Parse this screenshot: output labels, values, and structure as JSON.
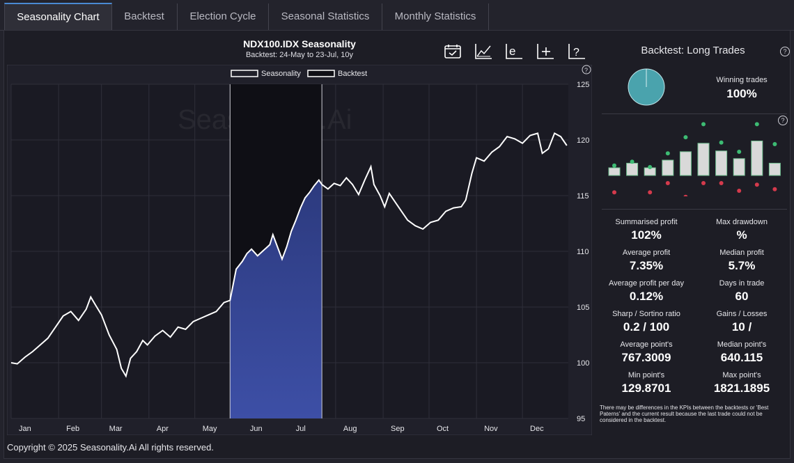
{
  "tabs": [
    {
      "label": "Seasonality Chart",
      "active": true
    },
    {
      "label": "Backtest",
      "active": false
    },
    {
      "label": "Election Cycle",
      "active": false
    },
    {
      "label": "Seasonal Statistics",
      "active": false
    },
    {
      "label": "Monthly Statistics",
      "active": false
    }
  ],
  "chart_header": {
    "title": "NDX100.IDX Seasonality",
    "subtitle": "Backtest: 24-May to 23-Jul, 10y"
  },
  "toolbar": {
    "icons": [
      "calendar-check-icon",
      "trend-chart-icon",
      "e-axis-icon",
      "plus-axis-icon",
      "question-axis-icon"
    ]
  },
  "help_glyph": "?",
  "colors": {
    "background": "#1d1d25",
    "plot_background": "#1a1a23",
    "line": "#ffffff",
    "backtest_fill": "#3d4fa6",
    "backtest_shade": "#0f0f15",
    "pie": "#4aa3ad",
    "profit_dot": "#3dbb73",
    "loss_dot": "#d43a4c",
    "bar": "#d9d9d9"
  },
  "chart_data": {
    "type": "line",
    "title": "NDX100.IDX Seasonality",
    "subtitle": "Backtest: 24-May to 23-Jul, 10y",
    "legend": [
      "Seasonality",
      "Backtest"
    ],
    "legend_position": "top-center",
    "watermark": "Seasonality.Ai",
    "x_tick_labels": [
      "Jan",
      "Feb",
      "Mar",
      "Apr",
      "May",
      "Jun",
      "Jul",
      "Aug",
      "Sep",
      "Oct",
      "Nov",
      "Dec"
    ],
    "y_ticks": [
      95,
      100,
      105,
      110,
      115,
      120,
      125
    ],
    "ylim": [
      95,
      125
    ],
    "xlim": [
      1,
      365
    ],
    "grid": true,
    "backtest_range_day": [
      144,
      204
    ],
    "series": [
      {
        "name": "Seasonality",
        "points": [
          [
            1,
            100.0
          ],
          [
            5,
            99.9
          ],
          [
            10,
            100.5
          ],
          [
            15,
            101.0
          ],
          [
            20,
            101.6
          ],
          [
            25,
            102.2
          ],
          [
            30,
            103.2
          ],
          [
            35,
            104.2
          ],
          [
            40,
            104.6
          ],
          [
            45,
            103.8
          ],
          [
            50,
            104.8
          ],
          [
            53,
            105.9
          ],
          [
            56,
            105.2
          ],
          [
            60,
            104.3
          ],
          [
            65,
            102.5
          ],
          [
            70,
            101.2
          ],
          [
            73,
            99.5
          ],
          [
            76,
            98.8
          ],
          [
            79,
            100.4
          ],
          [
            83,
            101.0
          ],
          [
            87,
            102.0
          ],
          [
            90,
            101.6
          ],
          [
            95,
            102.4
          ],
          [
            100,
            102.9
          ],
          [
            105,
            102.3
          ],
          [
            110,
            103.2
          ],
          [
            115,
            103.0
          ],
          [
            120,
            103.7
          ],
          [
            125,
            104.0
          ],
          [
            130,
            104.3
          ],
          [
            135,
            104.6
          ],
          [
            140,
            105.4
          ],
          [
            144,
            105.6
          ],
          [
            148,
            108.4
          ],
          [
            152,
            109.1
          ],
          [
            155,
            109.8
          ],
          [
            158,
            110.2
          ],
          [
            162,
            109.6
          ],
          [
            166,
            110.1
          ],
          [
            170,
            110.6
          ],
          [
            172,
            111.5
          ],
          [
            175,
            110.4
          ],
          [
            178,
            109.3
          ],
          [
            181,
            110.4
          ],
          [
            184,
            111.8
          ],
          [
            187,
            112.8
          ],
          [
            190,
            113.9
          ],
          [
            193,
            114.8
          ],
          [
            196,
            115.3
          ],
          [
            199,
            115.9
          ],
          [
            202,
            116.4
          ],
          [
            204,
            116.0
          ],
          [
            208,
            115.6
          ],
          [
            212,
            116.1
          ],
          [
            216,
            115.9
          ],
          [
            220,
            116.6
          ],
          [
            224,
            116.0
          ],
          [
            228,
            115.1
          ],
          [
            232,
            116.4
          ],
          [
            236,
            117.6
          ],
          [
            238,
            116.0
          ],
          [
            242,
            115.0
          ],
          [
            245,
            114.0
          ],
          [
            248,
            115.2
          ],
          [
            252,
            114.4
          ],
          [
            256,
            113.6
          ],
          [
            260,
            112.8
          ],
          [
            265,
            112.3
          ],
          [
            270,
            112.0
          ],
          [
            275,
            112.6
          ],
          [
            280,
            112.8
          ],
          [
            285,
            113.6
          ],
          [
            290,
            113.9
          ],
          [
            295,
            114.0
          ],
          [
            298,
            114.6
          ],
          [
            302,
            117.0
          ],
          [
            305,
            118.4
          ],
          [
            310,
            118.1
          ],
          [
            315,
            118.9
          ],
          [
            320,
            119.4
          ],
          [
            325,
            120.3
          ],
          [
            330,
            120.1
          ],
          [
            335,
            119.7
          ],
          [
            340,
            120.4
          ],
          [
            345,
            120.6
          ],
          [
            348,
            118.8
          ],
          [
            352,
            119.2
          ],
          [
            356,
            120.6
          ],
          [
            360,
            120.3
          ],
          [
            364,
            119.5
          ]
        ]
      }
    ]
  },
  "right_panel": {
    "title": "Backtest: Long Trades",
    "winning_trades_label": "Winning trades",
    "winning_trades_value": "100%",
    "winning_fraction": 1.0,
    "mini_bars": {
      "profit_dots": [
        1.2,
        1.7,
        1.0,
        2.8,
        4.9,
        6.6,
        4.2,
        3.0,
        6.6,
        4.0
      ],
      "bars": [
        1.0,
        1.6,
        1.0,
        2.0,
        3.1,
        4.2,
        3.2,
        2.2,
        4.5,
        1.6
      ],
      "loss_dots": [
        -2.2,
        -3.0,
        -2.2,
        -1.0,
        -2.8,
        -1.0,
        -1.0,
        -2.0,
        -1.2,
        -1.8
      ]
    },
    "stats": [
      {
        "label": "Summarised profit",
        "value": "102%"
      },
      {
        "label": "Max drawdown",
        "value": "%"
      },
      {
        "label": "Average profit",
        "value": "7.35%"
      },
      {
        "label": "Median profit",
        "value": "5.7%"
      },
      {
        "label": "Average profit per day",
        "value": "0.12%"
      },
      {
        "label": "Days in trade",
        "value": "60"
      },
      {
        "label": "Sharp / Sortino ratio",
        "value": "0.2 / 100"
      },
      {
        "label": "Gains / Losses",
        "value": "10 /"
      },
      {
        "label": "Average point's",
        "value": "767.3009"
      },
      {
        "label": "Median point's",
        "value": "640.115"
      },
      {
        "label": "Min point's",
        "value": "129.8701"
      },
      {
        "label": "Max point's",
        "value": "1821.1895"
      }
    ],
    "note": "There may be differences in the KPIs between the backtests or 'Best Paterns' and the current result because the last trade could not be considered in the backtest."
  },
  "footer": {
    "copyright": "Copyright © 2025 Seasonality.Ai All rights reserved."
  }
}
